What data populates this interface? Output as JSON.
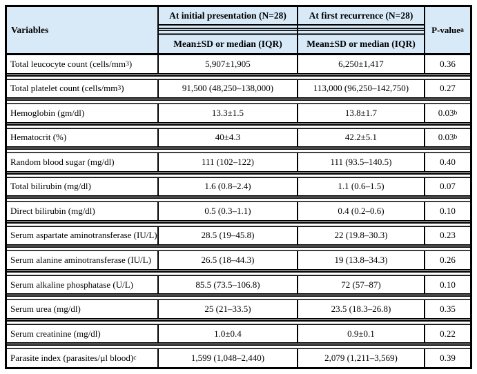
{
  "colors": {
    "header_bg": "#d8eaf8",
    "border": "#000000",
    "text": "#000000"
  },
  "header": {
    "variables": "Variables",
    "col_initial": "At initial presentation (N=28)",
    "col_recurrence": "At first recurrence (N=28)",
    "subheader": "Mean±SD or median (IQR)",
    "pvalue": "P-value",
    "pvalue_sup": "a"
  },
  "table": {
    "rows": [
      {
        "variable_pre": "Total leucocyte count (cells/mm",
        "variable_sup": "3",
        "variable_post": ")",
        "initial": "5,907±1,905",
        "recurrence": "6,250±1,417",
        "p": "0.36",
        "p_sup": ""
      },
      {
        "variable_pre": "Total platelet count (cells/mm",
        "variable_sup": "3",
        "variable_post": ")",
        "initial": "91,500 (48,250–138,000)",
        "recurrence": "113,000 (96,250–142,750)",
        "p": "0.27",
        "p_sup": ""
      },
      {
        "variable_pre": "Hemoglobin (gm/dl)",
        "variable_sup": "",
        "variable_post": "",
        "initial": "13.3±1.5",
        "recurrence": "13.8±1.7",
        "p": "0.03",
        "p_sup": "b"
      },
      {
        "variable_pre": "Hematocrit (%)",
        "variable_sup": "",
        "variable_post": "",
        "initial": "40±4.3",
        "recurrence": "42.2±5.1",
        "p": "0.03",
        "p_sup": "b"
      },
      {
        "variable_pre": "Random blood sugar (mg/dl)",
        "variable_sup": "",
        "variable_post": "",
        "initial": "111 (102–122)",
        "recurrence": "111 (93.5–140.5)",
        "p": "0.40",
        "p_sup": ""
      },
      {
        "variable_pre": "Total bilirubin (mg/dl)",
        "variable_sup": "",
        "variable_post": "",
        "initial": "1.6 (0.8–2.4)",
        "recurrence": "1.1 (0.6–1.5)",
        "p": "0.07",
        "p_sup": ""
      },
      {
        "variable_pre": "Direct bilirubin (mg/dl)",
        "variable_sup": "",
        "variable_post": "",
        "initial": "0.5 (0.3–1.1)",
        "recurrence": "0.4 (0.2–0.6)",
        "p": "0.10",
        "p_sup": ""
      },
      {
        "variable_pre": "Serum aspartate aminotransferase (IU/L)",
        "variable_sup": "",
        "variable_post": "",
        "initial": "28.5 (19–45.8)",
        "recurrence": "22 (19.8–30.3)",
        "p": "0.23",
        "p_sup": ""
      },
      {
        "variable_pre": "Serum alanine aminotransferase (IU/L)",
        "variable_sup": "",
        "variable_post": "",
        "initial": "26.5 (18–44.3)",
        "recurrence": "19 (13.8–34.3)",
        "p": "0.26",
        "p_sup": ""
      },
      {
        "variable_pre": "Serum alkaline phosphatase (U/L)",
        "variable_sup": "",
        "variable_post": "",
        "initial": "85.5 (73.5–106.8)",
        "recurrence": "72 (57–87)",
        "p": "0.10",
        "p_sup": ""
      },
      {
        "variable_pre": "Serum urea (mg/dl)",
        "variable_sup": "",
        "variable_post": "",
        "initial": "25 (21–33.5)",
        "recurrence": "23.5 (18.3–26.8)",
        "p": "0.35",
        "p_sup": ""
      },
      {
        "variable_pre": "Serum creatinine (mg/dl)",
        "variable_sup": "",
        "variable_post": "",
        "initial": "1.0±0.4",
        "recurrence": "0.9±0.1",
        "p": "0.22",
        "p_sup": ""
      },
      {
        "variable_pre": "Parasite index (parasites/µl blood)",
        "variable_sup": "c",
        "variable_post": "",
        "initial": "1,599 (1,048–2,440)",
        "recurrence": "2,079 (1,211–3,569)",
        "p": "0.39",
        "p_sup": ""
      }
    ]
  }
}
